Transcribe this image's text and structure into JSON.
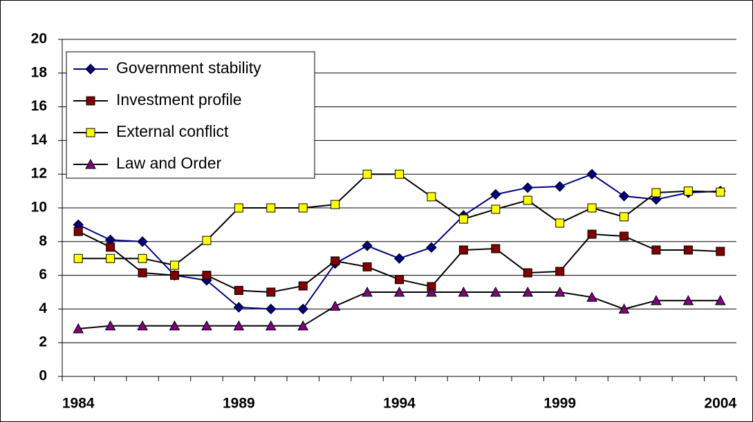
{
  "chart_data": {
    "type": "line",
    "categories": [
      "1984",
      null,
      null,
      null,
      null,
      "1989",
      null,
      null,
      null,
      null,
      "1994",
      null,
      null,
      null,
      null,
      "1999",
      null,
      null,
      null,
      null,
      "2004"
    ],
    "series": [
      {
        "name": "Government stability",
        "color": "#000080",
        "line_color": "#000080",
        "marker": "diamond",
        "values": [
          9.0,
          8.1,
          8.0,
          6.0,
          5.7,
          4.1,
          4.0,
          4.0,
          6.7,
          7.75,
          7.0,
          7.65,
          9.55,
          10.8,
          11.2,
          11.27,
          12.0,
          10.7,
          10.5,
          10.9,
          11.0
        ]
      },
      {
        "name": "Investment profile",
        "color": "#800000",
        "line_color": "#000000",
        "marker": "square",
        "values": [
          8.6,
          7.67,
          6.15,
          6.0,
          6.0,
          5.1,
          5.0,
          5.37,
          6.85,
          6.5,
          5.75,
          5.33,
          7.5,
          7.58,
          6.15,
          6.23,
          8.44,
          8.32,
          7.5,
          7.5,
          7.42
        ]
      },
      {
        "name": "External conflict",
        "color": "#ffff00",
        "line_color": "#000000",
        "marker": "square",
        "values": [
          7.0,
          7.0,
          7.0,
          6.6,
          8.07,
          10.0,
          10.0,
          10.0,
          10.2,
          12.0,
          12.0,
          10.66,
          9.34,
          9.92,
          10.45,
          9.1,
          10.0,
          9.47,
          10.9,
          11.0,
          10.94
        ]
      },
      {
        "name": "Law and Order",
        "color": "#800080",
        "line_color": "#000000",
        "marker": "triangle",
        "values": [
          2.83,
          3.0,
          3.0,
          3.0,
          3.0,
          3.0,
          3.0,
          3.0,
          4.17,
          5.0,
          5.0,
          5.0,
          5.0,
          5.0,
          5.0,
          5.0,
          4.7,
          4.0,
          4.5,
          4.5,
          4.5
        ]
      }
    ],
    "ylim": [
      0,
      20
    ],
    "yticks": [
      0,
      2,
      4,
      6,
      8,
      10,
      12,
      14,
      16,
      18,
      20
    ],
    "grid": true,
    "legend": "top-left"
  }
}
